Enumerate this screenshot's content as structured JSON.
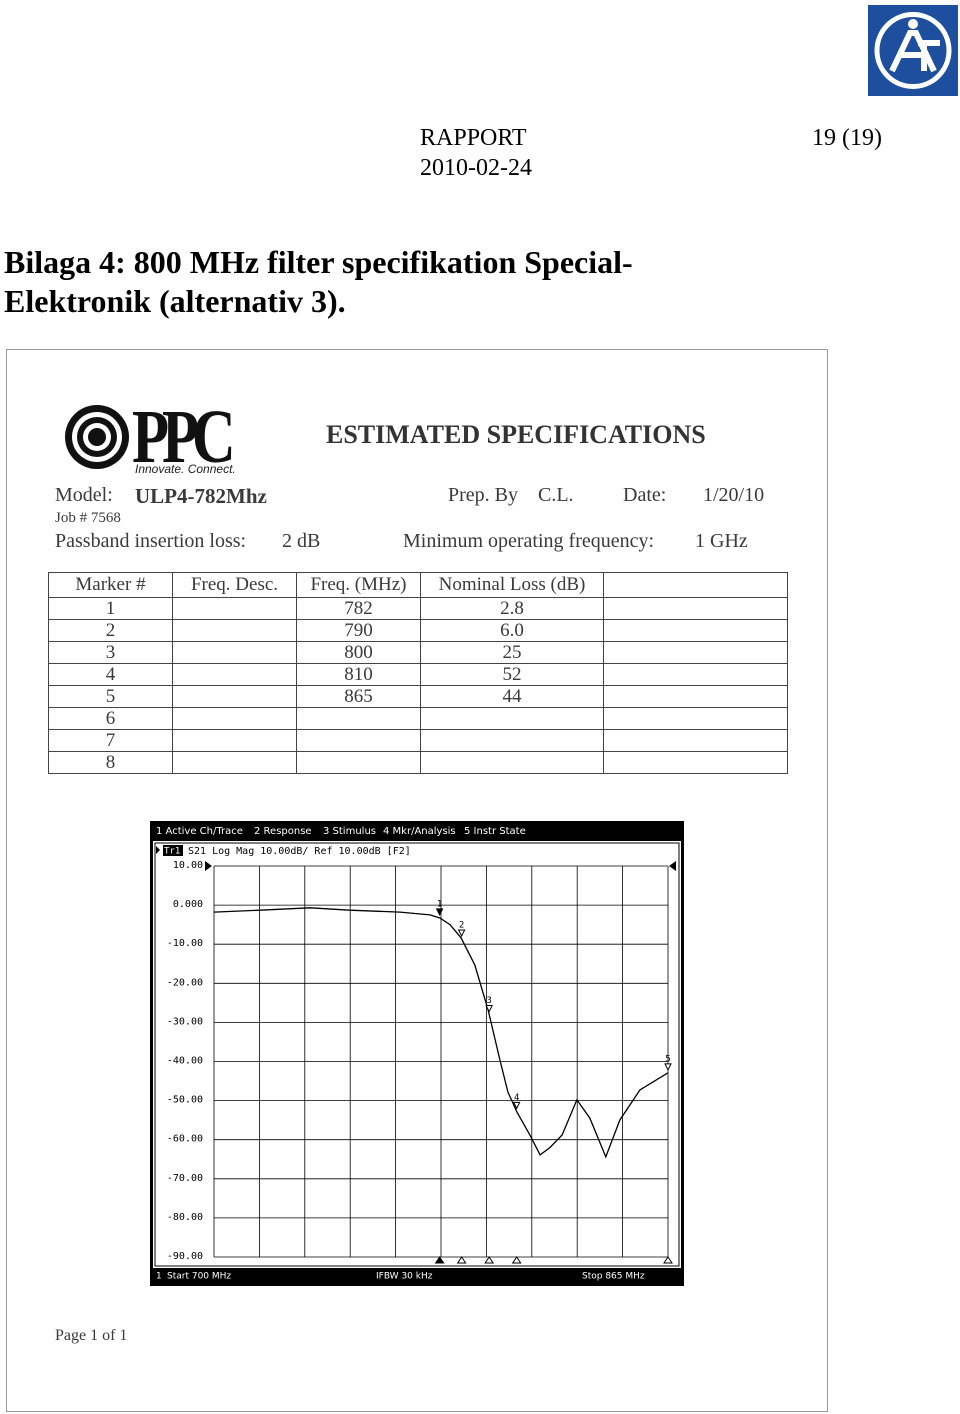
{
  "header": {
    "report": "RAPPORT",
    "page": "19 (19)",
    "date": "2010-02-24"
  },
  "title": "Bilaga 4: 800 MHz filter specifikation Special-Elektronik (alternativ 3).",
  "spec_sheet": {
    "logo_text": "PPC",
    "logo_tagline": "Innovate. Connect.",
    "heading": "ESTIMATED SPECIFICATIONS",
    "model_label": "Model:",
    "model": "ULP4-782Mhz",
    "prep_label": "Prep. By",
    "prep": "C.L.",
    "date_label": "Date:",
    "date": "1/20/10",
    "job": "Job # 7568",
    "insertion_label": "Passband insertion loss:",
    "insertion": "2 dB",
    "minfreq_label": "Minimum operating frequency:",
    "minfreq": "1 GHz",
    "table": {
      "columns": [
        "Marker #",
        "Freq. Desc.",
        "Freq. (MHz)",
        "Nominal Loss (dB)"
      ],
      "rows": [
        {
          "marker": "1",
          "freq": "782",
          "loss": "2.8"
        },
        {
          "marker": "2",
          "freq": "790",
          "loss": "6.0"
        },
        {
          "marker": "3",
          "freq": "800",
          "loss": "25"
        },
        {
          "marker": "4",
          "freq": "810",
          "loss": "52"
        },
        {
          "marker": "5",
          "freq": "865",
          "loss": "44"
        },
        {
          "marker": "6"
        },
        {
          "marker": "7"
        },
        {
          "marker": "8"
        }
      ]
    },
    "footer": "Page 1 of 1"
  },
  "chart_data": {
    "type": "line",
    "menu": [
      "1 Active Ch/Trace",
      "2 Response",
      "3 Stimulus",
      "4 Mkr/Analysis",
      "5 Instr State"
    ],
    "trace_label": "Tr1",
    "trace_info": "S21 Log Mag 10.00dB/ Ref 10.00dB [F2]",
    "channel": "1",
    "start_label": "Start 700 MHz",
    "ifbw_label": "IFBW 30 kHz",
    "stop_label": "Stop 865 MHz",
    "x": [
      700,
      716.7,
      734.9,
      749.4,
      767.6,
      778.5,
      782.1,
      785.8,
      789.8,
      794.8,
      799.6,
      803.9,
      806.8,
      810.1,
      814.8,
      818.5,
      822.1,
      826.5,
      831.9,
      836.6,
      842.4,
      847.5,
      854.8,
      865
    ],
    "values": [
      -1.8,
      -1.3,
      -0.7,
      -1.3,
      -1.8,
      -2.5,
      -3.3,
      -5,
      -8.4,
      -15.3,
      -26.8,
      -39.6,
      -47.8,
      -52.9,
      -58.8,
      -63.9,
      -62,
      -58.8,
      -49.8,
      -54.5,
      -64.4,
      -55,
      -47.3,
      -42.9
    ],
    "color": "#000000",
    "xlim": [
      700,
      865
    ],
    "xticks": [
      700,
      716.5,
      733,
      749.5,
      766,
      782.5,
      799,
      815.5,
      832,
      848.5,
      865
    ],
    "ylim": [
      -90,
      10
    ],
    "yticks": [
      {
        "value": 10,
        "label": "10.00"
      },
      {
        "value": 0,
        "label": "0.000"
      },
      {
        "value": -10,
        "label": "-10.00"
      },
      {
        "value": -20,
        "label": "-20.00"
      },
      {
        "value": -30,
        "label": "-30.00"
      },
      {
        "value": -40,
        "label": "-40.00"
      },
      {
        "value": -50,
        "label": "-50.00"
      },
      {
        "value": -60,
        "label": "-60.00"
      },
      {
        "value": -70,
        "label": "-70.00"
      },
      {
        "value": -80,
        "label": "-80.00"
      },
      {
        "value": -90,
        "label": "-90.00"
      }
    ],
    "grid": true,
    "markers": [
      {
        "label": "1",
        "x": 782
      },
      {
        "label": "2",
        "x": 790
      },
      {
        "label": "3",
        "x": 800
      },
      {
        "label": "4",
        "x": 810
      },
      {
        "label": "5",
        "x": 865
      }
    ]
  }
}
